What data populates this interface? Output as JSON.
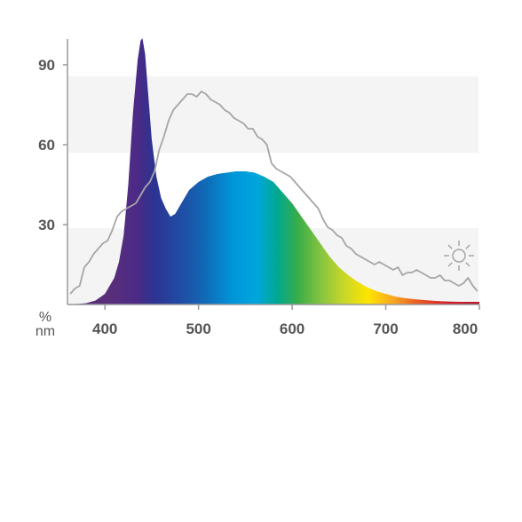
{
  "chart_data": {
    "type": "area",
    "title": "",
    "xlabel": "",
    "ylabel": "",
    "x_unit": "nm",
    "y_unit": "%",
    "xlim": [
      360,
      800
    ],
    "ylim": [
      0,
      100
    ],
    "x_ticks": [
      400,
      500,
      600,
      700,
      800
    ],
    "y_ticks": [
      30,
      60,
      90
    ],
    "grid": "alternating horizontal bands",
    "colors": {
      "band": "#f4f4f4",
      "axis": "#999999",
      "daylight_line": "#a6a6a6",
      "text": "#555555"
    },
    "series": [
      {
        "render": "spectrum-filled-area",
        "x": [
          360,
          370,
          380,
          390,
          400,
          410,
          415,
          420,
          425,
          430,
          435,
          438,
          440,
          443,
          446,
          450,
          455,
          460,
          465,
          470,
          475,
          480,
          490,
          500,
          510,
          520,
          530,
          540,
          550,
          560,
          570,
          580,
          590,
          600,
          610,
          620,
          630,
          640,
          650,
          660,
          670,
          680,
          690,
          700,
          710,
          720,
          730,
          740,
          750,
          760,
          770,
          780,
          790,
          800
        ],
        "y": [
          0,
          0.2,
          0.5,
          1.5,
          4,
          10,
          16,
          26,
          45,
          72,
          92,
          99,
          100,
          94,
          80,
          62,
          48,
          40,
          36,
          33,
          34,
          37,
          43,
          46,
          48,
          49,
          49.5,
          50,
          50,
          49.5,
          48,
          46,
          42,
          38,
          33,
          28,
          23,
          18,
          14,
          11,
          8.5,
          6.5,
          5,
          4,
          3,
          2.4,
          2,
          1.7,
          1.4,
          1.2,
          1.1,
          1,
          1,
          1
        ]
      },
      {
        "render": "daylight-reference-line",
        "x": [
          363,
          368,
          373,
          378,
          383,
          388,
          393,
          398,
          403,
          408,
          413,
          418,
          423,
          428,
          433,
          438,
          443,
          448,
          453,
          458,
          463,
          468,
          473,
          478,
          483,
          488,
          493,
          498,
          503,
          508,
          513,
          518,
          523,
          528,
          533,
          538,
          543,
          548,
          553,
          558,
          563,
          568,
          573,
          578,
          583,
          588,
          593,
          598,
          603,
          608,
          613,
          618,
          623,
          628,
          633,
          638,
          643,
          648,
          653,
          658,
          663,
          668,
          673,
          678,
          683,
          688,
          693,
          698,
          703,
          708,
          713,
          718,
          723,
          728,
          733,
          738,
          743,
          748,
          753,
          758,
          763,
          768,
          773,
          778,
          783,
          788,
          793,
          798
        ],
        "y": [
          4,
          6,
          7,
          14,
          16,
          19,
          21,
          23,
          24,
          28,
          33,
          35,
          36,
          37,
          38,
          41,
          44,
          46,
          50,
          58,
          63,
          69,
          73,
          75,
          77,
          79,
          79,
          78,
          80,
          79,
          77,
          76,
          75,
          73,
          72,
          70,
          69,
          68,
          66,
          66,
          63,
          62,
          60,
          53,
          51,
          50,
          49,
          48,
          46,
          44,
          42,
          40,
          38,
          36,
          32,
          29,
          28,
          26,
          25,
          22,
          21,
          19,
          18,
          17,
          16,
          15,
          16,
          15,
          14,
          13,
          14,
          11,
          12,
          12,
          13,
          12,
          11,
          10,
          10,
          11,
          9,
          9,
          8,
          7,
          8,
          10,
          7,
          5
        ]
      }
    ]
  },
  "icons": {
    "corner": "sun-icon"
  }
}
